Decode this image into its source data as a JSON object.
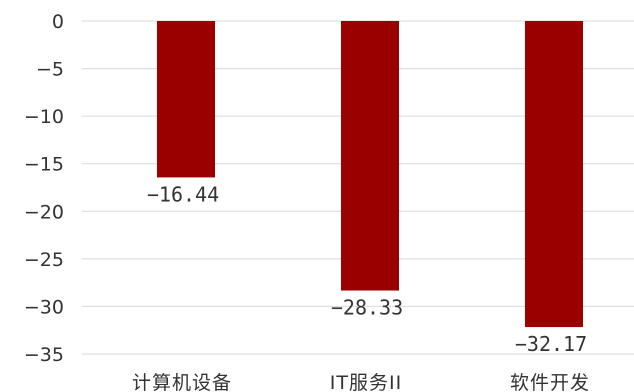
{
  "chart_data": {
    "type": "bar",
    "categories": [
      "计算机设备",
      "IT服务II",
      "软件开发"
    ],
    "values": [
      -16.44,
      -28.33,
      -32.17
    ],
    "data_labels": [
      "−16.44",
      "−28.33",
      "−32.17"
    ],
    "ylim": [
      -35,
      0
    ],
    "yticks": [
      0,
      -5,
      -10,
      -15,
      -20,
      -25,
      -30,
      -35
    ],
    "ytick_labels": [
      "0",
      "−5",
      "−10",
      "−15",
      "−20",
      "−25",
      "−30",
      "−35"
    ],
    "grid": true,
    "bar_color": "#9b0000"
  }
}
